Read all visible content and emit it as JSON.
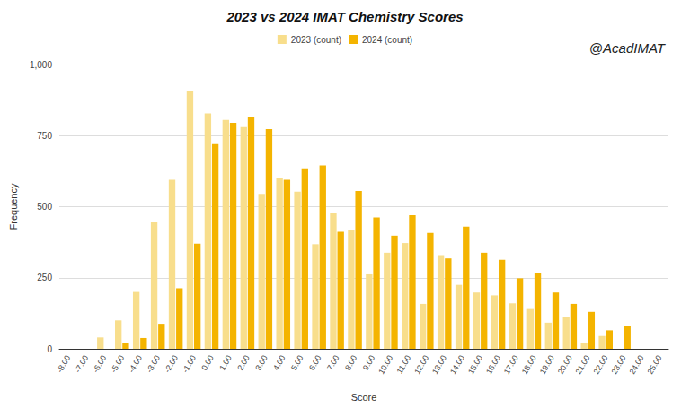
{
  "chart_data": {
    "type": "bar",
    "title": "2023 vs 2024 IMAT Chemistry Scores",
    "x_label": "Score",
    "y_label": "Frequency",
    "annotations": [
      "@AcadIMAT"
    ],
    "categories": [
      "-8.00",
      "-7.00",
      "-6.00",
      "-5.00",
      "-4.00",
      "-3.00",
      "-2.00",
      "-1.00",
      "0.00",
      "1.00",
      "2.00",
      "3.00",
      "4.00",
      "5.00",
      "6.00",
      "7.00",
      "8.00",
      "9.00",
      "10.00",
      "11.00",
      "12.00",
      "13.00",
      "14.00",
      "15.00",
      "16.00",
      "17.00",
      "18.00",
      "19.00",
      "20.00",
      "21.00",
      "22.00",
      "23.00",
      "24.00",
      "25.00"
    ],
    "series": [
      {
        "name": "2023 (count)",
        "color": "#f8de8c",
        "values": [
          0,
          0,
          40,
          100,
          200,
          445,
          595,
          905,
          828,
          805,
          780,
          545,
          600,
          553,
          368,
          478,
          418,
          262,
          338,
          372,
          158,
          330,
          225,
          198,
          188,
          160,
          140,
          92,
          112,
          20,
          45,
          0,
          0,
          0
        ]
      },
      {
        "name": "2024 (count)",
        "color": "#f4b400",
        "values": [
          0,
          0,
          0,
          20,
          38,
          88,
          213,
          370,
          720,
          795,
          815,
          773,
          595,
          635,
          645,
          412,
          555,
          462,
          398,
          470,
          408,
          318,
          430,
          338,
          313,
          248,
          265,
          198,
          158,
          130,
          65,
          82,
          0,
          0
        ]
      }
    ],
    "ylim": [
      0,
      1000
    ],
    "yticks": [
      0,
      250,
      500,
      750,
      1000
    ],
    "grid": true,
    "legend": "top"
  }
}
